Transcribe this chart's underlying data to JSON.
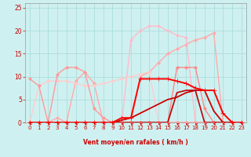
{
  "bg_color": "#cff0f0",
  "grid_color": "#aadddd",
  "xlabel": "Vent moyen/en rafales ( km/h )",
  "xlim": [
    -0.5,
    23.5
  ],
  "ylim": [
    0,
    26
  ],
  "yticks": [
    0,
    5,
    10,
    15,
    20,
    25
  ],
  "xticks": [
    0,
    1,
    2,
    3,
    4,
    5,
    6,
    7,
    8,
    9,
    10,
    11,
    12,
    13,
    14,
    15,
    16,
    17,
    18,
    19,
    20,
    21,
    22,
    23
  ],
  "series": [
    {
      "x": [
        0,
        1,
        2,
        3,
        4,
        5,
        6,
        7,
        8,
        9,
        10,
        11,
        12,
        13,
        14,
        15,
        16,
        17,
        18,
        19,
        20,
        21,
        22,
        23
      ],
      "y": [
        0,
        0,
        0,
        0,
        0,
        0,
        0,
        0,
        0,
        0,
        0,
        0,
        10,
        11,
        13,
        15,
        16,
        17,
        18,
        18.5,
        19.5,
        0,
        0,
        0
      ],
      "color": "#ffaaaa",
      "linewidth": 1.0,
      "marker": "D",
      "markersize": 2.0,
      "zorder": 2
    },
    {
      "x": [
        0,
        1,
        2,
        3,
        4,
        5,
        6,
        7,
        8,
        9,
        10,
        11,
        12,
        13,
        14,
        15,
        16,
        17,
        18,
        19,
        20,
        21,
        22,
        23
      ],
      "y": [
        0,
        0,
        0,
        0,
        0,
        0,
        0,
        0,
        0,
        0,
        0,
        18,
        20,
        21,
        21,
        20,
        19,
        18.5,
        0,
        0,
        0,
        0,
        0,
        0
      ],
      "color": "#ffbbcc",
      "linewidth": 1.0,
      "marker": "D",
      "markersize": 2.0,
      "zorder": 2
    },
    {
      "x": [
        0,
        1,
        2,
        3,
        4,
        5,
        6,
        7,
        8,
        9,
        10,
        11,
        12,
        13,
        14,
        15,
        16,
        17,
        18,
        19,
        20,
        21,
        22,
        23
      ],
      "y": [
        9.5,
        8,
        0,
        10.5,
        12,
        12,
        11,
        3,
        1,
        0,
        0,
        0,
        0,
        0,
        0,
        0,
        0,
        0,
        0,
        0,
        0,
        0,
        0,
        0
      ],
      "color": "#ff9999",
      "linewidth": 1.0,
      "marker": "D",
      "markersize": 2.0,
      "zorder": 3
    },
    {
      "x": [
        0,
        1,
        2,
        3,
        4,
        5,
        6,
        7,
        8,
        9,
        10,
        11,
        12,
        13,
        14,
        15,
        16,
        17,
        18,
        19,
        20,
        21,
        22,
        23
      ],
      "y": [
        0,
        0,
        0,
        1,
        0,
        9,
        11,
        8.5,
        0,
        0,
        0,
        0,
        0,
        0,
        0,
        0,
        0,
        0,
        0,
        0,
        0,
        0,
        0,
        0
      ],
      "color": "#ffaaaa",
      "linewidth": 1.0,
      "marker": "D",
      "markersize": 2.0,
      "zorder": 2
    },
    {
      "x": [
        0,
        1,
        2,
        3,
        4,
        5,
        6,
        7,
        8,
        9,
        10,
        11,
        12,
        13,
        14,
        15,
        16,
        17,
        18,
        19,
        20,
        21,
        22,
        23
      ],
      "y": [
        0,
        8,
        9,
        9,
        9,
        8.5,
        8,
        8,
        8.5,
        9,
        9.5,
        10,
        10.5,
        11,
        0,
        0,
        0,
        0,
        0,
        0,
        0,
        0,
        0,
        0
      ],
      "color": "#ffcccc",
      "linewidth": 1.0,
      "marker": "D",
      "markersize": 2.0,
      "zorder": 2
    },
    {
      "x": [
        0,
        1,
        2,
        3,
        4,
        5,
        6,
        7,
        8,
        9,
        10,
        11,
        12,
        13,
        14,
        15,
        16,
        17,
        18,
        19,
        20,
        21,
        22,
        23
      ],
      "y": [
        0,
        0,
        0,
        0,
        0,
        0,
        0,
        0,
        0,
        0,
        1,
        1,
        9.5,
        9.5,
        9.5,
        9.5,
        9,
        8.5,
        7.5,
        7,
        7,
        2,
        0,
        0
      ],
      "color": "#ff0000",
      "linewidth": 1.4,
      "marker": "+",
      "markersize": 4,
      "zorder": 5
    },
    {
      "x": [
        0,
        1,
        2,
        3,
        4,
        5,
        6,
        7,
        8,
        9,
        10,
        11,
        12,
        13,
        14,
        15,
        16,
        17,
        18,
        19,
        20,
        21,
        22,
        23
      ],
      "y": [
        0,
        0,
        0,
        0,
        0,
        0,
        0,
        0,
        0,
        0,
        0.5,
        1,
        2,
        3,
        4,
        5,
        5.5,
        6.5,
        7,
        7,
        2.5,
        0,
        0,
        0
      ],
      "color": "#cc0000",
      "linewidth": 1.3,
      "marker": null,
      "markersize": 0,
      "zorder": 4
    },
    {
      "x": [
        0,
        1,
        2,
        3,
        4,
        5,
        6,
        7,
        8,
        9,
        10,
        11,
        12,
        13,
        14,
        15,
        16,
        17,
        18,
        19,
        20,
        21,
        22,
        23
      ],
      "y": [
        0,
        0,
        0,
        0,
        0,
        0,
        0,
        0,
        0,
        0,
        0,
        0,
        0,
        0,
        0,
        0,
        12,
        12,
        12,
        3,
        0,
        0,
        0,
        0
      ],
      "color": "#ff8888",
      "linewidth": 1.0,
      "marker": "D",
      "markersize": 2.0,
      "zorder": 3
    },
    {
      "x": [
        0,
        1,
        2,
        3,
        4,
        5,
        6,
        7,
        8,
        9,
        10,
        11,
        12,
        13,
        14,
        15,
        16,
        17,
        18,
        19,
        20,
        21,
        22,
        23
      ],
      "y": [
        0,
        0,
        0,
        0,
        0,
        0,
        0,
        0,
        0,
        0,
        0,
        0,
        0,
        0,
        0,
        0,
        6.5,
        7,
        7,
        0,
        0,
        0,
        0,
        0
      ],
      "color": "#bb0000",
      "linewidth": 1.2,
      "marker": null,
      "markersize": 0,
      "zorder": 4
    }
  ],
  "arrow_color": "#dd0000",
  "arrow_angles": [
    270,
    270,
    270,
    260,
    270,
    270,
    270,
    270,
    270,
    270,
    250,
    245,
    245,
    240,
    240,
    240,
    240,
    235,
    235,
    240,
    270,
    270,
    270,
    270
  ]
}
